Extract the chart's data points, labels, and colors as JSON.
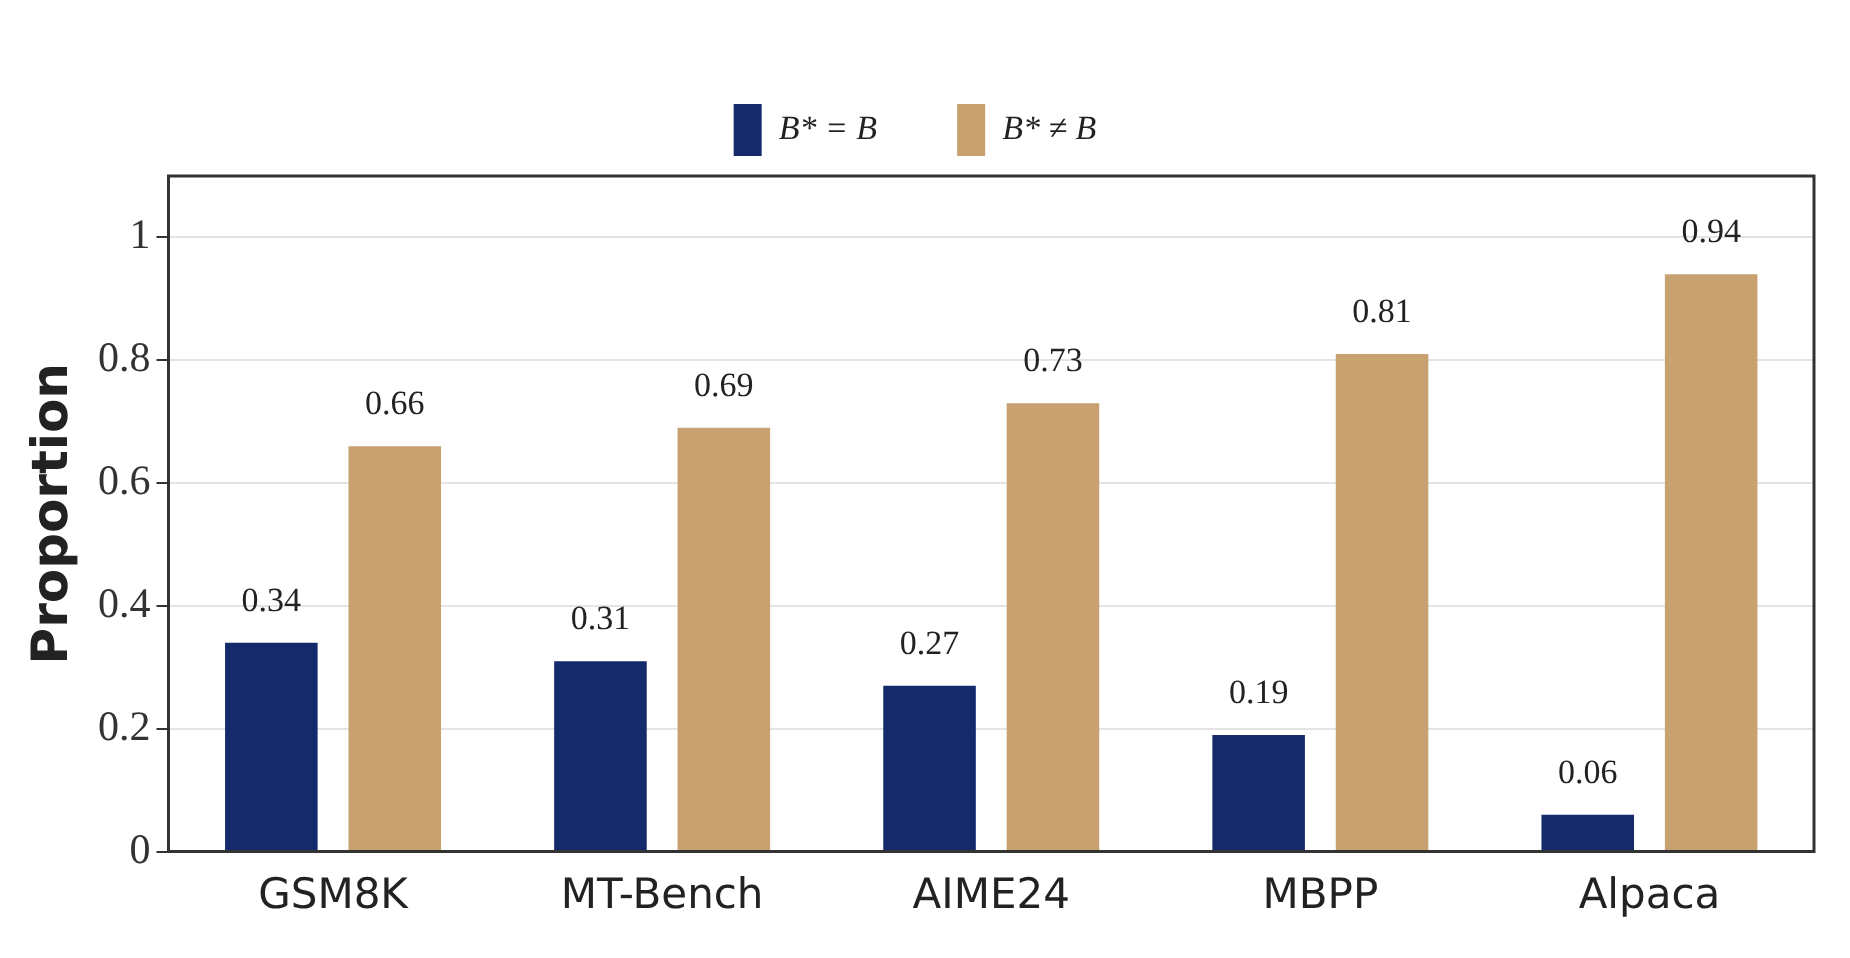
{
  "chart_data": {
    "type": "bar",
    "ylabel": "Proportion",
    "categories": [
      "GSM8K",
      "MT-Bench",
      "AIME24",
      "MBPP",
      "Alpaca"
    ],
    "series": [
      {
        "name": "B* = B",
        "color": "#142a6b",
        "values": [
          0.34,
          0.31,
          0.27,
          0.19,
          0.06
        ]
      },
      {
        "name": "B* ≠ B",
        "color": "#c8a171",
        "values": [
          0.66,
          0.69,
          0.73,
          0.81,
          0.94
        ]
      }
    ],
    "ylim": [
      0,
      1.1
    ],
    "yticks": [
      0,
      0.2,
      0.4,
      0.6,
      0.8,
      1
    ],
    "grid": "y",
    "legend": "top",
    "data_labels": true
  }
}
